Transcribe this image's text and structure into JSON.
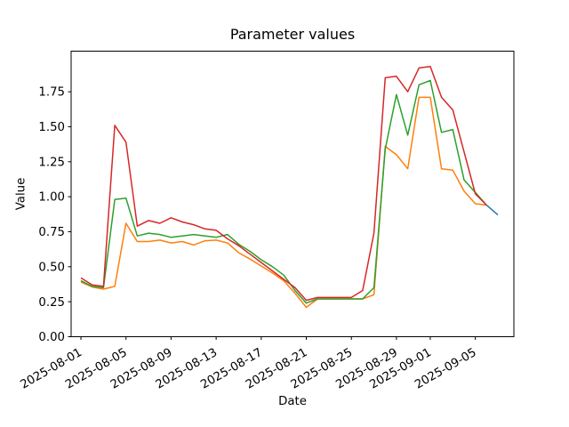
{
  "figure": {
    "background": "#ffffff",
    "spine_color": "#000000",
    "text_color": "#000000"
  },
  "chart_data": {
    "type": "line",
    "title": "Parameter values",
    "xlabel": "Date",
    "ylabel": "Value",
    "grid": false,
    "legend": null,
    "ylim": [
      0,
      2.04
    ],
    "xlim_days": [
      -0.87,
      38.42
    ],
    "y_ticks": [
      0.0,
      0.25,
      0.5,
      0.75,
      1.0,
      1.25,
      1.5,
      1.75
    ],
    "x_tick_dates": [
      "2025-08-01",
      "2025-08-05",
      "2025-08-09",
      "2025-08-13",
      "2025-08-17",
      "2025-08-21",
      "2025-08-25",
      "2025-08-29",
      "2025-09-01",
      "2025-09-05"
    ],
    "x_tick_rotation_deg": 30,
    "base_date": "2025-08-01",
    "dates": [
      "2025-08-01",
      "2025-08-02",
      "2025-08-03",
      "2025-08-04",
      "2025-08-05",
      "2025-08-06",
      "2025-08-07",
      "2025-08-08",
      "2025-08-09",
      "2025-08-10",
      "2025-08-11",
      "2025-08-12",
      "2025-08-13",
      "2025-08-14",
      "2025-08-15",
      "2025-08-16",
      "2025-08-17",
      "2025-08-18",
      "2025-08-19",
      "2025-08-20",
      "2025-08-21",
      "2025-08-22",
      "2025-08-23",
      "2025-08-24",
      "2025-08-25",
      "2025-08-26",
      "2025-08-27",
      "2025-08-28",
      "2025-08-29",
      "2025-08-30",
      "2025-08-31",
      "2025-09-01",
      "2025-09-02",
      "2025-09-03",
      "2025-09-04",
      "2025-09-05",
      "2025-09-06"
    ],
    "series": [
      {
        "name": "series-blue",
        "color": "#1f77b4",
        "dates": [
          "2025-09-06",
          "2025-09-07"
        ],
        "values": [
          0.94,
          0.87
        ]
      },
      {
        "name": "series-orange",
        "color": "#ff7f0e",
        "values": [
          0.39,
          0.355,
          0.34,
          0.36,
          0.81,
          0.68,
          0.68,
          0.69,
          0.67,
          0.68,
          0.655,
          0.685,
          0.69,
          0.67,
          0.6,
          0.555,
          0.505,
          0.455,
          0.4,
          0.31,
          0.21,
          0.27,
          0.27,
          0.27,
          0.27,
          0.27,
          0.3,
          1.36,
          1.3,
          1.2,
          1.71,
          1.71,
          1.2,
          1.19,
          1.04,
          0.95,
          0.94
        ]
      },
      {
        "name": "series-green",
        "color": "#2ca02c",
        "values": [
          0.4,
          0.36,
          0.35,
          0.98,
          0.99,
          0.72,
          0.74,
          0.73,
          0.71,
          0.72,
          0.73,
          0.72,
          0.71,
          0.73,
          0.66,
          0.61,
          0.55,
          0.5,
          0.44,
          0.33,
          0.24,
          0.27,
          0.27,
          0.27,
          0.27,
          0.27,
          0.35,
          1.34,
          1.73,
          1.44,
          1.8,
          1.83,
          1.46,
          1.48,
          1.12,
          1.03,
          0.94
        ]
      },
      {
        "name": "series-red",
        "color": "#d62728",
        "values": [
          0.42,
          0.37,
          0.36,
          1.51,
          1.39,
          0.79,
          0.83,
          0.81,
          0.85,
          0.82,
          0.8,
          0.77,
          0.76,
          0.7,
          0.65,
          0.59,
          0.53,
          0.47,
          0.41,
          0.35,
          0.26,
          0.28,
          0.28,
          0.28,
          0.28,
          0.33,
          0.74,
          1.85,
          1.86,
          1.75,
          1.92,
          1.93,
          1.71,
          1.62,
          1.32,
          1.02,
          0.94
        ]
      }
    ]
  }
}
